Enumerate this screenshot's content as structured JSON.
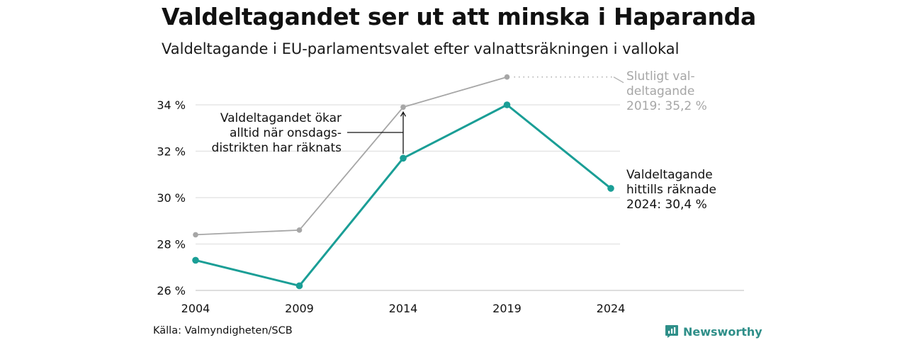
{
  "title": "Valdeltagandet ser ut att minska i Haparanda",
  "subtitle": "Valdeltagande i EU-parlamentsvalet efter valnattsräkningen i vallokal",
  "source": "Källa: Valmyndigheten/SCB",
  "brand": {
    "name": "Newsworthy",
    "icon": "newsworthy-logo-icon",
    "color": "#2f8f89"
  },
  "chart_data": {
    "type": "line",
    "x": [
      2004,
      2009,
      2014,
      2019,
      2024
    ],
    "x_tick_labels": [
      "2004",
      "2009",
      "2014",
      "2019",
      "2024"
    ],
    "ylim": [
      26,
      35.2
    ],
    "y_ticks": [
      26,
      28,
      30,
      32,
      34
    ],
    "y_tick_labels": [
      "26 %",
      "28 %",
      "30 %",
      "32 %",
      "34 %"
    ],
    "grid": "horizontal",
    "series": [
      {
        "values": [
          28.4,
          28.6,
          33.9,
          35.2,
          null
        ],
        "color": "#a6a6a6"
      },
      {
        "values": [
          27.3,
          26.2,
          31.7,
          34.0,
          30.4
        ],
        "color": "#1a9e96"
      }
    ],
    "annotations": {
      "increase_note": [
        "Valdeltagandet ökar",
        "alltid när onsdags-",
        "distrikten har räknats"
      ],
      "final_2019": [
        "Slutligt val-",
        "deltagande",
        "2019: 35,2 %"
      ],
      "counted_2024": [
        "Valdeltagande",
        "hittills räknade",
        "2024: 30,4 %"
      ]
    }
  }
}
